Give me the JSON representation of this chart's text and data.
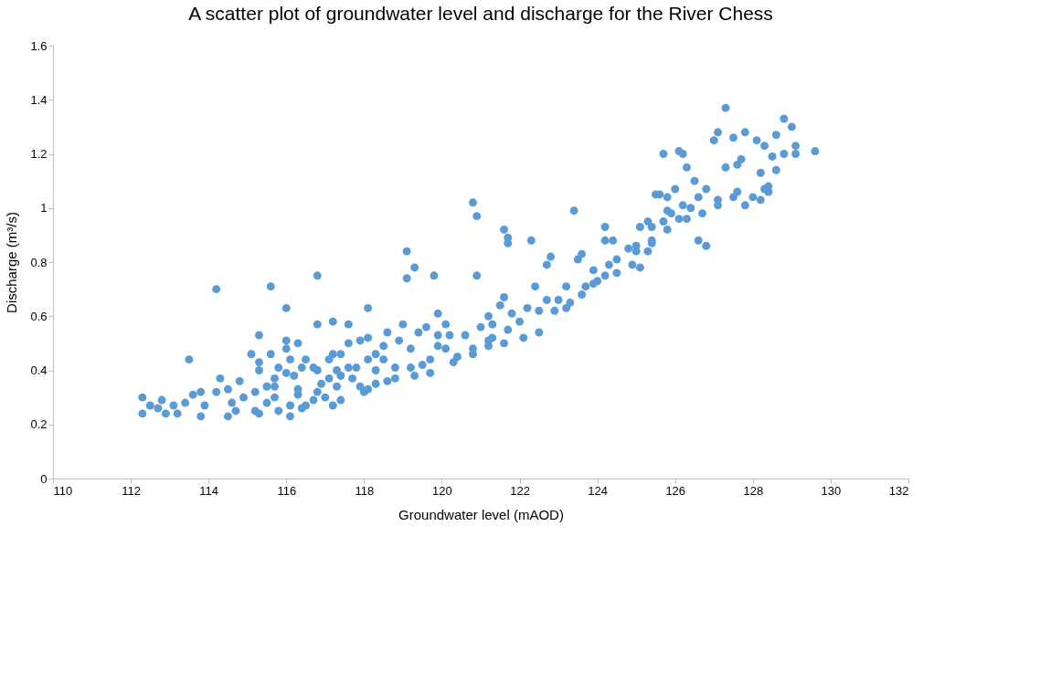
{
  "chart_data": {
    "type": "scatter",
    "title": "A scatter plot of groundwater level and discharge for the River Chess",
    "xlabel": "Groundwater level (mAOD)",
    "ylabel": "Discharge (m³/s)",
    "xlim": [
      110,
      132
    ],
    "xticks": [
      110,
      112,
      114,
      116,
      118,
      120,
      122,
      124,
      126,
      128,
      130,
      132
    ],
    "ylim": [
      0,
      1.6
    ],
    "yticks": [
      0,
      0.2,
      0.4,
      0.6,
      0.8,
      1,
      1.2,
      1.4,
      1.6
    ],
    "grid": false,
    "marker": "circle",
    "series": [
      {
        "color": "#5b9bd5",
        "x": [
          112.3,
          112.3,
          112.5,
          112.8,
          112.7,
          112.9,
          113.1,
          113.2,
          113.4,
          113.5,
          113.6,
          113.8,
          113.8,
          113.9,
          114.2,
          114.2,
          114.3,
          114.5,
          114.8,
          114.5,
          114.6,
          114.9,
          114.7,
          115.2,
          115.3,
          115.1,
          115.3,
          115.3,
          115.6,
          115.6,
          115.5,
          115.2,
          115.5,
          115.7,
          115.8,
          115.3,
          116.0,
          116.0,
          116.0,
          116.3,
          116.1,
          116.0,
          116.2,
          116.3,
          116.3,
          116.1,
          116.1,
          115.8,
          115.7,
          115.7,
          116.4,
          116.5,
          116.7,
          116.8,
          116.8,
          117.2,
          117.6,
          118.1,
          116.8,
          117.1,
          117.1,
          117.2,
          117.4,
          117.3,
          117.4,
          117.3,
          116.9,
          116.8,
          116.7,
          117.0,
          117.2,
          117.4,
          116.4,
          116.5,
          117.6,
          117.8,
          117.7,
          117.9,
          118.1,
          118.0,
          117.6,
          117.9,
          118.1,
          118.1,
          118.3,
          118.5,
          118.6,
          118.5,
          118.3,
          118.3,
          118.6,
          118.8,
          118.8,
          119.1,
          119.3,
          119.1,
          119.8,
          120.8,
          120.9,
          121.6,
          121.7,
          121.7,
          122.3,
          123.4,
          122.8,
          122.7,
          122.4,
          120.9,
          119.9,
          121.6,
          123.2,
          124.2,
          124.2,
          124.4,
          121.2,
          121.5,
          121.0,
          121.3,
          121.3,
          121.2,
          121.6,
          121.7,
          121.8,
          122.0,
          122.2,
          122.5,
          122.5,
          122.1,
          122.9,
          122.7,
          123.0,
          123.3,
          123.2,
          123.6,
          123.7,
          123.9,
          123.9,
          124.0,
          124.2,
          123.6,
          123.5,
          124.3,
          124.5,
          124.5,
          124.8,
          125.0,
          124.9,
          125.1,
          125.3,
          125.3,
          125.1,
          125.4,
          125.5,
          120.6,
          120.8,
          120.3,
          120.1,
          119.9,
          119.7,
          119.5,
          119.2,
          119.0,
          118.9,
          119.4,
          119.6,
          119.9,
          120.2,
          119.2,
          119.3,
          120.1,
          120.4,
          120.8,
          121.2,
          119.7,
          127.3,
          128.8,
          129.0,
          128.6,
          127.1,
          127.0,
          127.5,
          127.8,
          128.1,
          128.3,
          129.1,
          129.6,
          128.8,
          129.1,
          128.5,
          125.7,
          126.1,
          126.2,
          126.3,
          127.3,
          127.7,
          127.6,
          128.2,
          128.6,
          126.5,
          126.8,
          126.6,
          125.6,
          125.8,
          126.0,
          126.2,
          126.4,
          126.7,
          127.1,
          127.1,
          127.6,
          127.5,
          128.0,
          127.8,
          128.2,
          128.3,
          128.4,
          128.4,
          125.8,
          125.9,
          126.1,
          126.3,
          125.7,
          125.8,
          125.4,
          125.4,
          126.6,
          126.8,
          125.0
        ],
        "values": [
          0.3,
          0.24,
          0.27,
          0.29,
          0.26,
          0.24,
          0.27,
          0.24,
          0.28,
          0.44,
          0.31,
          0.32,
          0.23,
          0.27,
          0.7,
          0.32,
          0.37,
          0.33,
          0.36,
          0.23,
          0.28,
          0.3,
          0.25,
          0.25,
          0.53,
          0.46,
          0.43,
          0.4,
          0.46,
          0.71,
          0.34,
          0.32,
          0.28,
          0.3,
          0.25,
          0.24,
          0.63,
          0.51,
          0.48,
          0.5,
          0.44,
          0.39,
          0.38,
          0.33,
          0.31,
          0.27,
          0.23,
          0.41,
          0.37,
          0.34,
          0.41,
          0.44,
          0.41,
          0.75,
          0.57,
          0.58,
          0.57,
          0.63,
          0.4,
          0.37,
          0.44,
          0.46,
          0.46,
          0.4,
          0.38,
          0.34,
          0.35,
          0.32,
          0.29,
          0.3,
          0.27,
          0.29,
          0.26,
          0.27,
          0.41,
          0.41,
          0.37,
          0.34,
          0.33,
          0.32,
          0.5,
          0.51,
          0.52,
          0.44,
          0.46,
          0.49,
          0.54,
          0.44,
          0.4,
          0.35,
          0.36,
          0.41,
          0.37,
          0.84,
          0.78,
          0.74,
          0.75,
          1.02,
          0.97,
          0.92,
          0.89,
          0.87,
          0.88,
          0.99,
          0.82,
          0.79,
          0.71,
          0.75,
          0.61,
          0.67,
          0.71,
          0.93,
          0.88,
          0.88,
          0.6,
          0.64,
          0.56,
          0.57,
          0.52,
          0.49,
          0.5,
          0.55,
          0.61,
          0.58,
          0.63,
          0.62,
          0.54,
          0.52,
          0.62,
          0.66,
          0.66,
          0.65,
          0.63,
          0.68,
          0.71,
          0.72,
          0.77,
          0.73,
          0.75,
          0.83,
          0.81,
          0.79,
          0.81,
          0.76,
          0.85,
          0.86,
          0.79,
          0.78,
          0.84,
          0.95,
          0.93,
          0.88,
          1.05,
          0.53,
          0.46,
          0.43,
          0.57,
          0.49,
          0.44,
          0.42,
          0.48,
          0.57,
          0.51,
          0.54,
          0.56,
          0.53,
          0.53,
          0.41,
          0.38,
          0.48,
          0.45,
          0.48,
          0.51,
          0.39,
          1.37,
          1.33,
          1.3,
          1.27,
          1.28,
          1.25,
          1.26,
          1.28,
          1.25,
          1.23,
          1.23,
          1.21,
          1.2,
          1.2,
          1.19,
          1.2,
          1.21,
          1.2,
          1.15,
          1.15,
          1.18,
          1.16,
          1.13,
          1.14,
          1.1,
          1.07,
          1.04,
          1.05,
          1.04,
          1.07,
          1.01,
          1.0,
          0.98,
          1.03,
          1.01,
          1.06,
          1.04,
          1.04,
          1.01,
          1.03,
          1.07,
          1.08,
          1.06,
          0.99,
          0.98,
          0.96,
          0.96,
          0.95,
          0.92,
          0.93,
          0.87,
          0.88,
          0.86,
          0.84
        ]
      }
    ]
  }
}
